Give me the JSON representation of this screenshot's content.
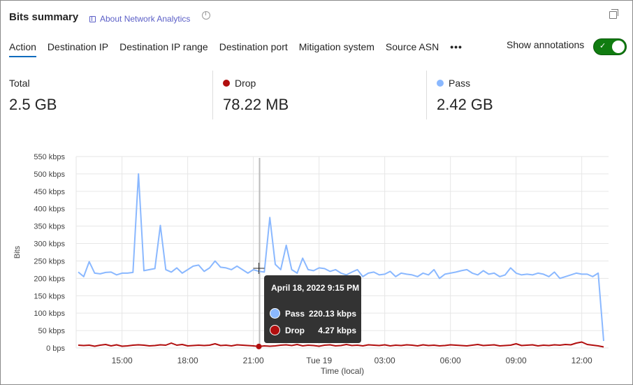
{
  "header": {
    "title": "Bits summary",
    "about_link": "About Network Analytics",
    "icons": [
      "book-icon",
      "pie-chart-icon",
      "restore-window-icon"
    ]
  },
  "tabs": [
    {
      "label": "Action",
      "active": true
    },
    {
      "label": "Destination IP"
    },
    {
      "label": "Destination IP range"
    },
    {
      "label": "Destination port"
    },
    {
      "label": "Mitigation system"
    },
    {
      "label": "Source ASN"
    }
  ],
  "more_label": "•••",
  "annotations": {
    "label": "Show annotations",
    "on": true
  },
  "stats": [
    {
      "label": "Total",
      "value": "2.5 GB"
    },
    {
      "label": "Drop",
      "value": "78.22 MB",
      "color": "#b10e0e"
    },
    {
      "label": "Pass",
      "value": "2.42 GB",
      "color": "#8ab8ff"
    }
  ],
  "tooltip": {
    "title": "April 18, 2022 9:15 PM",
    "rows": [
      {
        "name": "Pass",
        "value": "220.13 kbps",
        "color": "#8ab8ff"
      },
      {
        "name": "Drop",
        "value": "4.27 kbps",
        "color": "#b10e0e"
      }
    ]
  },
  "chart_data": {
    "type": "line",
    "xlabel": "Time (local)",
    "ylabel": "Bits",
    "ylim": [
      0,
      550
    ],
    "y_unit": "kbps",
    "grid": true,
    "yticks": [
      "0 bps",
      "50 kbps",
      "100 kbps",
      "150 kbps",
      "200 kbps",
      "250 kbps",
      "300 kbps",
      "350 kbps",
      "400 kbps",
      "450 kbps",
      "500 kbps",
      "550 kbps"
    ],
    "xticks": [
      {
        "label": "15:00",
        "at": "2022-04-18 15:00"
      },
      {
        "label": "18:00",
        "at": "2022-04-18 18:00"
      },
      {
        "label": "21:00",
        "at": "2022-04-18 21:00"
      },
      {
        "label": "Tue 19",
        "at": "2022-04-19 00:00"
      },
      {
        "label": "03:00",
        "at": "2022-04-19 03:00"
      },
      {
        "label": "06:00",
        "at": "2022-04-19 06:00"
      },
      {
        "label": "09:00",
        "at": "2022-04-19 09:00"
      },
      {
        "label": "12:00",
        "at": "2022-04-19 12:00"
      }
    ],
    "x": [
      "2022-04-18 13:00",
      "2022-04-18 13:15",
      "2022-04-18 13:30",
      "2022-04-18 13:45",
      "2022-04-18 14:00",
      "2022-04-18 14:15",
      "2022-04-18 14:30",
      "2022-04-18 14:45",
      "2022-04-18 15:00",
      "2022-04-18 15:15",
      "2022-04-18 15:30",
      "2022-04-18 15:45",
      "2022-04-18 16:00",
      "2022-04-18 16:15",
      "2022-04-18 16:30",
      "2022-04-18 16:45",
      "2022-04-18 17:00",
      "2022-04-18 17:15",
      "2022-04-18 17:30",
      "2022-04-18 17:45",
      "2022-04-18 18:00",
      "2022-04-18 18:15",
      "2022-04-18 18:30",
      "2022-04-18 18:45",
      "2022-04-18 19:00",
      "2022-04-18 19:15",
      "2022-04-18 19:30",
      "2022-04-18 19:45",
      "2022-04-18 20:00",
      "2022-04-18 20:15",
      "2022-04-18 20:30",
      "2022-04-18 20:45",
      "2022-04-18 21:00",
      "2022-04-18 21:15",
      "2022-04-18 21:30",
      "2022-04-18 21:45",
      "2022-04-18 22:00",
      "2022-04-18 22:15",
      "2022-04-18 22:30",
      "2022-04-18 22:45",
      "2022-04-18 23:00",
      "2022-04-18 23:15",
      "2022-04-18 23:30",
      "2022-04-18 23:45",
      "2022-04-19 00:00",
      "2022-04-19 00:15",
      "2022-04-19 00:30",
      "2022-04-19 00:45",
      "2022-04-19 01:00",
      "2022-04-19 01:15",
      "2022-04-19 01:30",
      "2022-04-19 01:45",
      "2022-04-19 02:00",
      "2022-04-19 02:15",
      "2022-04-19 02:30",
      "2022-04-19 02:45",
      "2022-04-19 03:00",
      "2022-04-19 03:15",
      "2022-04-19 03:30",
      "2022-04-19 03:45",
      "2022-04-19 04:00",
      "2022-04-19 04:15",
      "2022-04-19 04:30",
      "2022-04-19 04:45",
      "2022-04-19 05:00",
      "2022-04-19 05:15",
      "2022-04-19 05:30",
      "2022-04-19 05:45",
      "2022-04-19 06:00",
      "2022-04-19 06:15",
      "2022-04-19 06:30",
      "2022-04-19 06:45",
      "2022-04-19 07:00",
      "2022-04-19 07:15",
      "2022-04-19 07:30",
      "2022-04-19 07:45",
      "2022-04-19 08:00",
      "2022-04-19 08:15",
      "2022-04-19 08:30",
      "2022-04-19 08:45",
      "2022-04-19 09:00",
      "2022-04-19 09:15",
      "2022-04-19 09:30",
      "2022-04-19 09:45",
      "2022-04-19 10:00",
      "2022-04-19 10:15",
      "2022-04-19 10:30",
      "2022-04-19 10:45",
      "2022-04-19 11:00",
      "2022-04-19 11:15",
      "2022-04-19 11:30",
      "2022-04-19 11:45",
      "2022-04-19 12:00",
      "2022-04-19 12:15",
      "2022-04-19 12:30",
      "2022-04-19 12:45",
      "2022-04-19 13:00"
    ],
    "series": [
      {
        "name": "Pass",
        "color": "#8ab8ff",
        "values": [
          218,
          205,
          248,
          215,
          213,
          217,
          218,
          210,
          215,
          215,
          217,
          500,
          222,
          225,
          228,
          352,
          225,
          218,
          230,
          215,
          225,
          235,
          238,
          220,
          230,
          250,
          232,
          230,
          225,
          235,
          225,
          215,
          225,
          220.13,
          218,
          375,
          240,
          225,
          295,
          225,
          215,
          258,
          225,
          222,
          230,
          228,
          220,
          225,
          215,
          210,
          218,
          225,
          205,
          215,
          218,
          210,
          212,
          220,
          205,
          215,
          212,
          210,
          205,
          215,
          210,
          225,
          200,
          212,
          215,
          218,
          222,
          225,
          215,
          210,
          222,
          212,
          215,
          205,
          210,
          230,
          215,
          210,
          212,
          210,
          215,
          212,
          205,
          218,
          200,
          205,
          210,
          215,
          212,
          212,
          205,
          215,
          20
        ]
      },
      {
        "name": "Drop",
        "color": "#b10e0e",
        "values": [
          8,
          7,
          8,
          5,
          8,
          10,
          6,
          9,
          5,
          6,
          8,
          9,
          8,
          6,
          7,
          9,
          8,
          14,
          8,
          10,
          6,
          7,
          8,
          7,
          8,
          12,
          7,
          8,
          6,
          9,
          8,
          7,
          6,
          4.27,
          6,
          5,
          6,
          8,
          9,
          7,
          10,
          6,
          8,
          7,
          5,
          8,
          9,
          6,
          7,
          10,
          7,
          8,
          6,
          9,
          8,
          7,
          9,
          6,
          8,
          7,
          9,
          8,
          6,
          9,
          7,
          8,
          6,
          7,
          9,
          8,
          7,
          6,
          8,
          10,
          7,
          8,
          9,
          6,
          7,
          8,
          12,
          7,
          8,
          9,
          6,
          8,
          7,
          9,
          8,
          10,
          9,
          14,
          17,
          10,
          8,
          6,
          3
        ]
      }
    ],
    "highlight_index": 33
  }
}
